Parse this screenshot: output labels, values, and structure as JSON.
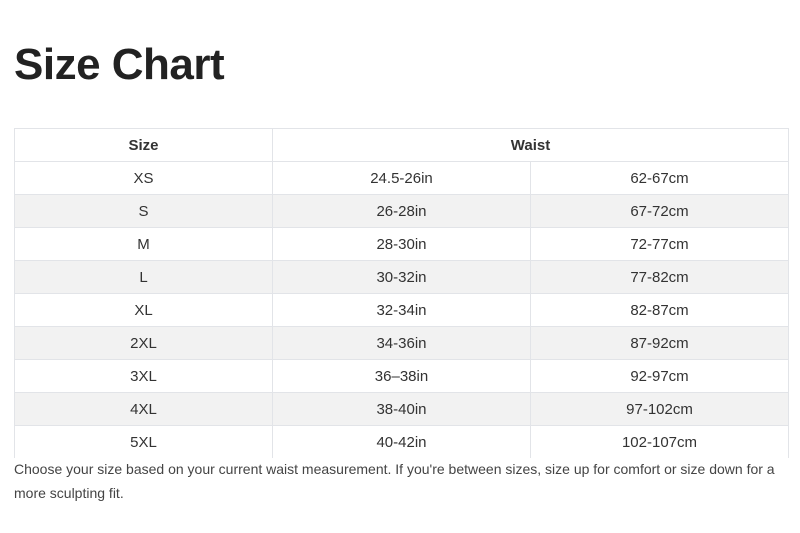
{
  "title": "Size Chart",
  "table": {
    "headers": [
      "Size",
      "Waist"
    ],
    "rows": [
      {
        "size": "XS",
        "in": "24.5-26in",
        "cm": "62-67cm"
      },
      {
        "size": "S",
        "in": "26-28in",
        "cm": "67-72cm"
      },
      {
        "size": "M",
        "in": "28-30in",
        "cm": "72-77cm"
      },
      {
        "size": "L",
        "in": "30-32in",
        "cm": "77-82cm"
      },
      {
        "size": "XL",
        "in": "32-34in",
        "cm": "82-87cm"
      },
      {
        "size": "2XL",
        "in": "34-36in",
        "cm": "87-92cm"
      },
      {
        "size": "3XL",
        "in": "36–38in",
        "cm": "92-97cm"
      },
      {
        "size": "4XL",
        "in": "38-40in",
        "cm": "97-102cm"
      },
      {
        "size": "5XL",
        "in": "40-42in",
        "cm": "102-107cm"
      }
    ]
  },
  "note": "Choose your size based on your current waist measurement. If you're between sizes, size up for comfort or size down for a more sculpting fit."
}
